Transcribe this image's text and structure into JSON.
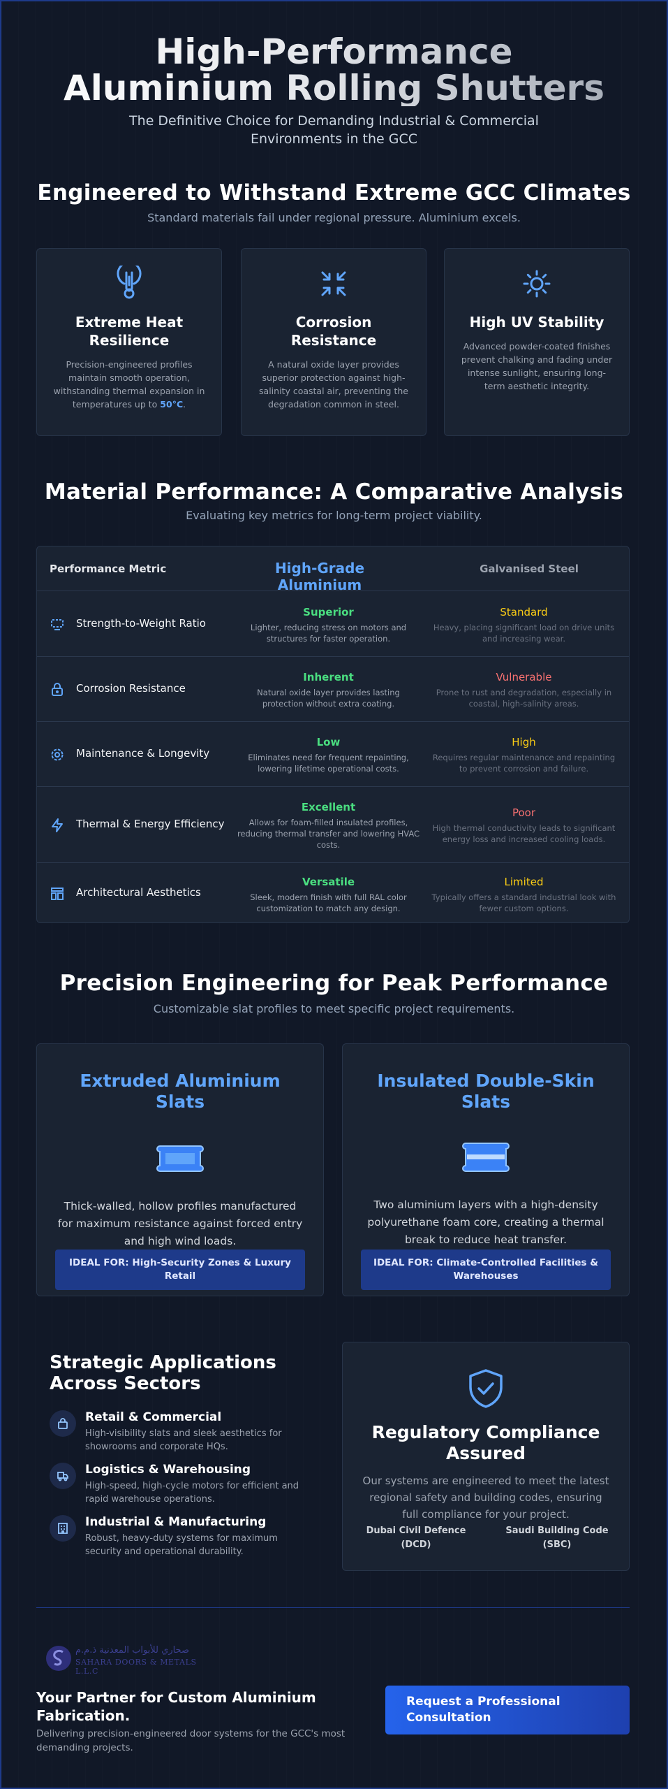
{
  "hero": {
    "title": "High-Performance Aluminium Rolling Shutters",
    "subtitle": "The Definitive Choice for Demanding Industrial & Commercial Environments in the GCC"
  },
  "climate": {
    "title": "Engineered to Withstand Extreme GCC Climates",
    "subtitle": "Standard materials fail under regional pressure. Aluminium excels.",
    "cards": [
      {
        "icon": "thermometer-icon",
        "title": "Extreme Heat Resilience",
        "text": "Precision-engineered profiles maintain smooth operation, withstanding thermal expansion in temperatures up to ",
        "highlight": "50°C",
        "suffix": "."
      },
      {
        "icon": "shrink-arrows-icon",
        "title": "Corrosion Resistance",
        "text": "A natural oxide layer provides superior protection against high-salinity coastal air, preventing the degradation common in steel."
      },
      {
        "icon": "sun-icon",
        "title": "High UV Stability",
        "text": "Advanced powder-coated finishes prevent chalking and fading under intense sunlight, ensuring long-term aesthetic integrity."
      }
    ]
  },
  "comparison": {
    "title": "Material Performance: A Comparative Analysis",
    "subtitle": "Evaluating key metrics for long-term project viability.",
    "headers": {
      "metric": "Performance Metric",
      "aluminium": "High-Grade Aluminium",
      "steel": "Galvanised Steel"
    },
    "rows": [
      {
        "icon": "weight-icon",
        "metric": "Strength-to-Weight Ratio",
        "alu_value": "Superior",
        "alu_desc": "Lighter, reducing stress on motors and structures for faster operation.",
        "steel_value": "Standard",
        "steel_color": "yellow",
        "steel_desc": "Heavy, placing significant load on drive units and increasing wear."
      },
      {
        "icon": "lock-icon",
        "metric": "Corrosion Resistance",
        "alu_value": "Inherent",
        "alu_desc": "Natural oxide layer provides lasting protection without extra coating.",
        "steel_value": "Vulnerable",
        "steel_color": "red",
        "steel_desc": "Prone to rust and degradation, especially in coastal, high-salinity areas."
      },
      {
        "icon": "gear-icon",
        "metric": "Maintenance & Longevity",
        "alu_value": "Low",
        "alu_desc": "Eliminates need for frequent repainting, lowering lifetime operational costs.",
        "steel_value": "High",
        "steel_color": "yellow",
        "steel_desc": "Requires regular maintenance and repainting to prevent corrosion and failure."
      },
      {
        "icon": "lightning-icon",
        "metric": "Thermal & Energy Efficiency",
        "alu_value": "Excellent",
        "alu_desc": "Allows for foam-filled insulated profiles, reducing thermal transfer and lowering HVAC costs.",
        "steel_value": "Poor",
        "steel_color": "red",
        "steel_desc": "High thermal conductivity leads to significant energy loss and increased cooling loads."
      },
      {
        "icon": "layout-icon",
        "metric": "Architectural Aesthetics",
        "alu_value": "Versatile",
        "alu_desc": "Sleek, modern finish with full RAL color customization to match any design.",
        "steel_value": "Limited",
        "steel_color": "yellow",
        "steel_desc": "Typically offers a standard industrial look with fewer custom options."
      }
    ]
  },
  "precision": {
    "title": "Precision Engineering for Peak Performance",
    "subtitle": "Customizable slat profiles to meet specific project requirements.",
    "slats": [
      {
        "title": "Extruded Aluminium Slats",
        "text": "Thick-walled, hollow profiles manufactured for maximum resistance against forced entry and high wind loads.",
        "ideal": "IDEAL FOR: High-Security Zones & Luxury Retail"
      },
      {
        "title": "Insulated Double-Skin Slats",
        "text": "Two aluminium layers with a high-density polyurethane foam core, creating a thermal break to reduce heat transfer.",
        "ideal": "IDEAL FOR: Climate-Controlled Facilities & Warehouses"
      }
    ]
  },
  "applications": {
    "title": "Strategic Applications Across Sectors",
    "items": [
      {
        "icon": "shopping-bag-icon",
        "name": "Retail & Commercial",
        "desc": "High-visibility slats and sleek aesthetics for showrooms and corporate HQs."
      },
      {
        "icon": "truck-icon",
        "name": "Logistics & Warehousing",
        "desc": "High-speed, high-cycle motors for efficient and rapid warehouse operations."
      },
      {
        "icon": "factory-icon",
        "name": "Industrial & Manufacturing",
        "desc": "Robust, heavy-duty systems for maximum security and operational durability."
      }
    ]
  },
  "compliance": {
    "title": "Regulatory Compliance Assured",
    "text": "Our systems are engineered to meet the latest regional safety and building codes, ensuring full compliance for your project.",
    "standards": [
      "Dubai Civil Defence (DCD)",
      "Saudi Building Code (SBC)"
    ]
  },
  "footer": {
    "logo_arabic": "صحاري للأبواب المعدنية ذ.م.م",
    "logo_english": "SAHARA DOORS & METALS L.L.C",
    "partner_title": "Your Partner for Custom Aluminium Fabrication.",
    "partner_sub": "Delivering precision-engineered door systems for the GCC's most demanding projects.",
    "cta_label": "Request a Professional Consultation"
  },
  "colors": {
    "background": "#111827",
    "accent": "#60a5fa",
    "positive": "#4ade80",
    "warning": "#facc15",
    "negative": "#f87171",
    "cta": "#2563eb"
  }
}
